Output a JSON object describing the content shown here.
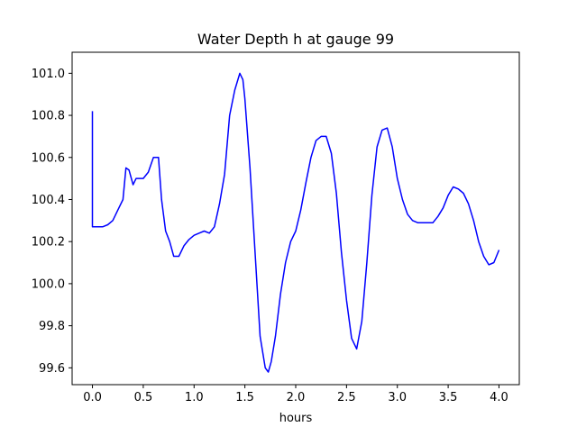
{
  "chart_data": {
    "type": "line",
    "title": "Water Depth h at gauge 99",
    "xlabel": "hours",
    "ylabel": "",
    "xlim": [
      -0.2,
      4.2
    ],
    "ylim": [
      99.52,
      101.1
    ],
    "grid": false,
    "xticks": [
      0.0,
      0.5,
      1.0,
      1.5,
      2.0,
      2.5,
      3.0,
      3.5,
      4.0
    ],
    "xtick_labels": [
      "0.0",
      "0.5",
      "1.0",
      "1.5",
      "2.0",
      "2.5",
      "3.0",
      "3.5",
      "4.0"
    ],
    "yticks": [
      99.6,
      99.8,
      100.0,
      100.2,
      100.4,
      100.6,
      100.8,
      101.0
    ],
    "ytick_labels": [
      "99.6",
      "99.8",
      "100.0",
      "100.2",
      "100.4",
      "100.6",
      "100.8",
      "101.0"
    ],
    "series": [
      {
        "color": "#0000ff",
        "x": [
          0.0,
          0.0,
          0.05,
          0.1,
          0.15,
          0.2,
          0.25,
          0.3,
          0.33,
          0.36,
          0.4,
          0.43,
          0.47,
          0.5,
          0.55,
          0.6,
          0.65,
          0.68,
          0.72,
          0.76,
          0.8,
          0.85,
          0.9,
          0.95,
          1.0,
          1.05,
          1.1,
          1.15,
          1.2,
          1.25,
          1.3,
          1.35,
          1.4,
          1.45,
          1.48,
          1.5,
          1.55,
          1.6,
          1.65,
          1.7,
          1.73,
          1.76,
          1.8,
          1.85,
          1.9,
          1.95,
          2.0,
          2.05,
          2.1,
          2.15,
          2.2,
          2.25,
          2.3,
          2.35,
          2.4,
          2.45,
          2.5,
          2.55,
          2.6,
          2.65,
          2.7,
          2.75,
          2.8,
          2.85,
          2.9,
          2.95,
          3.0,
          3.05,
          3.1,
          3.15,
          3.2,
          3.25,
          3.3,
          3.35,
          3.4,
          3.45,
          3.5,
          3.55,
          3.6,
          3.65,
          3.7,
          3.75,
          3.8,
          3.85,
          3.9,
          3.95,
          4.0
        ],
        "y": [
          100.82,
          100.27,
          100.27,
          100.27,
          100.28,
          100.3,
          100.35,
          100.4,
          100.55,
          100.54,
          100.47,
          100.5,
          100.5,
          100.5,
          100.53,
          100.6,
          100.6,
          100.4,
          100.25,
          100.2,
          100.13,
          100.13,
          100.18,
          100.21,
          100.23,
          100.24,
          100.25,
          100.24,
          100.27,
          100.38,
          100.52,
          100.8,
          100.92,
          101.0,
          100.97,
          100.88,
          100.55,
          100.15,
          99.75,
          99.6,
          99.58,
          99.63,
          99.75,
          99.95,
          100.1,
          100.2,
          100.25,
          100.35,
          100.48,
          100.6,
          100.68,
          100.7,
          100.7,
          100.62,
          100.43,
          100.15,
          99.92,
          99.74,
          99.69,
          99.82,
          100.1,
          100.42,
          100.65,
          100.73,
          100.74,
          100.65,
          100.5,
          100.4,
          100.33,
          100.3,
          100.29,
          100.29,
          100.29,
          100.29,
          100.32,
          100.36,
          100.42,
          100.46,
          100.45,
          100.43,
          100.38,
          100.3,
          100.2,
          100.13,
          100.09,
          100.1,
          100.16
        ]
      }
    ]
  }
}
